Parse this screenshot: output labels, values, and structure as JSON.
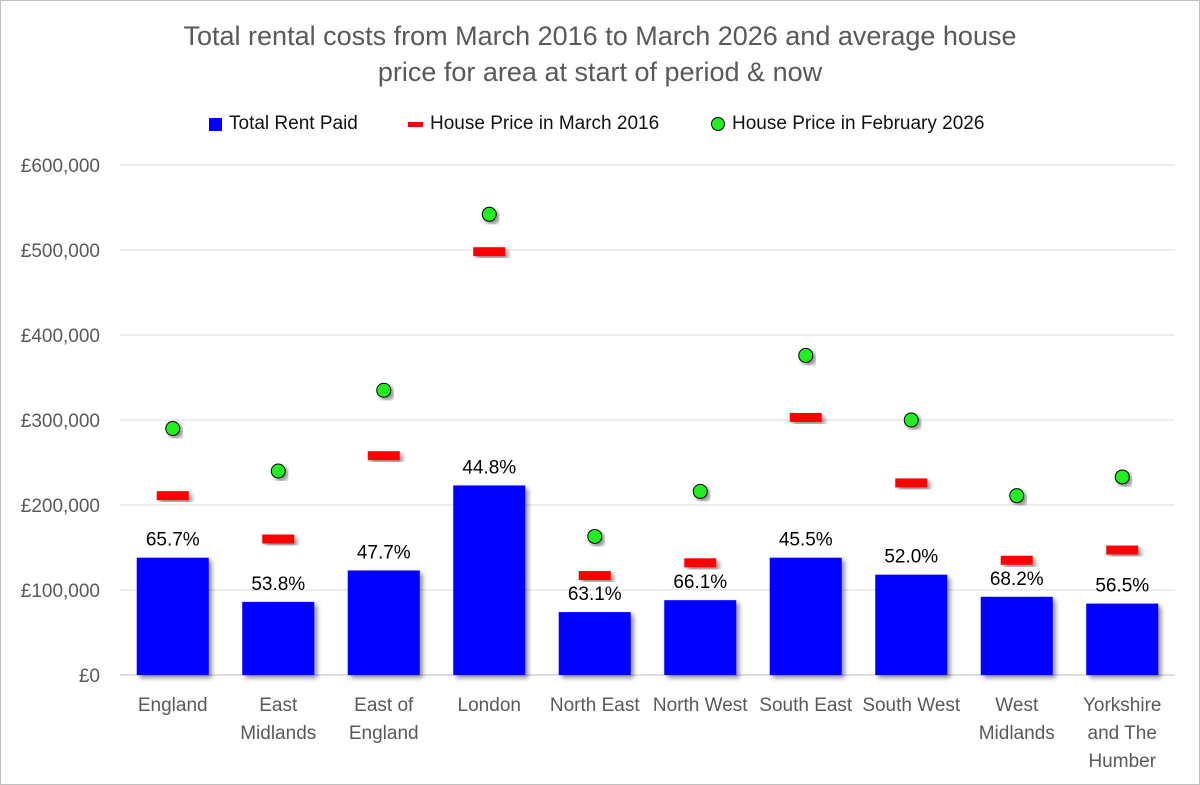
{
  "chart_data": {
    "type": "bar",
    "title": "Total rental costs from March 2016 to March 2026 and average house price for area at start of period & now",
    "title_lines": [
      "Total rental costs from March 2016 to March 2026 and average house",
      "price for area at start of period & now"
    ],
    "categories": [
      [
        "England"
      ],
      [
        "East",
        "Midlands"
      ],
      [
        "East of",
        "England"
      ],
      [
        "London"
      ],
      [
        "North East"
      ],
      [
        "North West"
      ],
      [
        "South East"
      ],
      [
        "South West"
      ],
      [
        "West",
        "Midlands"
      ],
      [
        "Yorkshire",
        "and The",
        "Humber"
      ]
    ],
    "series": [
      {
        "name": "Total Rent Paid",
        "type": "bar",
        "color": "#0000ff",
        "values": [
          138000,
          86000,
          123000,
          223000,
          74000,
          88000,
          138000,
          118000,
          92000,
          84000
        ]
      },
      {
        "name": "House Price in March 2016",
        "type": "marker-dash",
        "color": "#ff0000",
        "values": [
          211000,
          160000,
          258000,
          498000,
          117000,
          132000,
          303000,
          226000,
          135000,
          147000
        ]
      },
      {
        "name": "House Price in February 2026",
        "type": "marker-circle",
        "color": "#22ee22",
        "values": [
          290000,
          240000,
          335000,
          542000,
          163000,
          216000,
          376000,
          300000,
          211000,
          233000
        ]
      }
    ],
    "data_labels": [
      "65.7%",
      "53.8%",
      "47.7%",
      "44.8%",
      "63.1%",
      "66.1%",
      "45.5%",
      "52.0%",
      "68.2%",
      "56.5%"
    ],
    "ylim": [
      0,
      600000
    ],
    "yticks": [
      0,
      100000,
      200000,
      300000,
      400000,
      500000,
      600000
    ],
    "ytick_labels": [
      "£0",
      "£100,000",
      "£200,000",
      "£300,000",
      "£400,000",
      "£500,000",
      "£600,000"
    ],
    "grid": true,
    "legend_position": "top",
    "xlabel": "",
    "ylabel": ""
  }
}
